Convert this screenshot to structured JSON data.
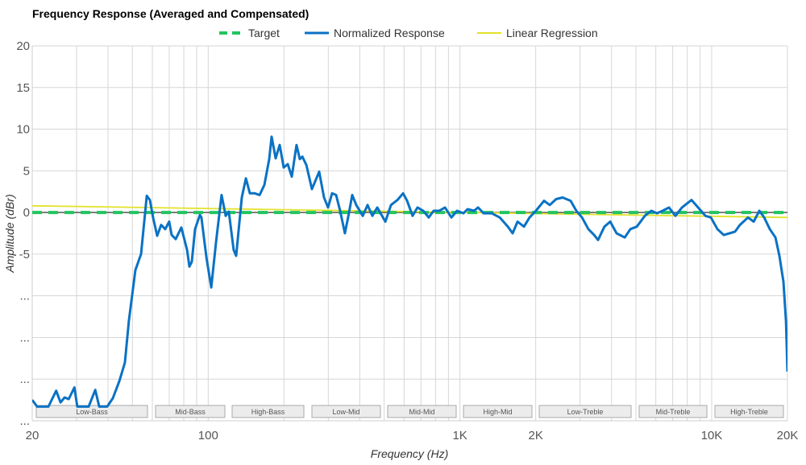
{
  "chart_data": {
    "type": "line",
    "title": "Frequency Response (Averaged and Compensated)",
    "xlabel": "Frequency (Hz)",
    "ylabel": "Amplitude (dBr)",
    "x_scale": "log",
    "xlim": [
      20,
      20000
    ],
    "ylim": [
      -25,
      20
    ],
    "grid": true,
    "legend_position": "top",
    "x_tick_labels": [
      {
        "value": 20,
        "label": "20"
      },
      {
        "value": 100,
        "label": "100"
      },
      {
        "value": 1000,
        "label": "1K"
      },
      {
        "value": 2000,
        "label": "2K"
      },
      {
        "value": 10000,
        "label": "10K"
      },
      {
        "value": 20000,
        "label": "20K"
      }
    ],
    "y_tick_labels": [
      {
        "value": 20,
        "label": "20"
      },
      {
        "value": 15,
        "label": "15"
      },
      {
        "value": 10,
        "label": "10"
      },
      {
        "value": 5,
        "label": "5"
      },
      {
        "value": 0,
        "label": "0"
      },
      {
        "value": -5,
        "label": "-5"
      },
      {
        "value": -10,
        "label": "..."
      },
      {
        "value": -15,
        "label": "..."
      },
      {
        "value": -20,
        "label": "..."
      },
      {
        "value": -25,
        "label": "..."
      }
    ],
    "bands": [
      "Low-Bass",
      "Mid-Bass",
      "High-Bass",
      "Low-Mid",
      "Mid-Mid",
      "High-Mid",
      "Low-Treble",
      "Mid-Treble",
      "High-Treble"
    ],
    "series": [
      {
        "name": "Target",
        "color": "#22c55e",
        "style": "dashed",
        "points": [
          [
            20,
            0
          ],
          [
            20000,
            0
          ]
        ]
      },
      {
        "name": "Normalized Response",
        "color": "#0a72c4",
        "style": "solid",
        "points": [
          [
            20,
            -22.5
          ],
          [
            20.9,
            -23.3
          ],
          [
            23.2,
            -23.3
          ],
          [
            24.9,
            -21.4
          ],
          [
            25.9,
            -22.8
          ],
          [
            26.9,
            -22.2
          ],
          [
            27.9,
            -22.4
          ],
          [
            29.4,
            -21.0
          ],
          [
            30.2,
            -23.3
          ],
          [
            33.5,
            -23.3
          ],
          [
            35.6,
            -21.3
          ],
          [
            36.9,
            -23.3
          ],
          [
            39.7,
            -23.3
          ],
          [
            41.8,
            -22.3
          ],
          [
            44.4,
            -20.2
          ],
          [
            46.7,
            -18.0
          ],
          [
            48.4,
            -13.0
          ],
          [
            51.4,
            -6.9
          ],
          [
            54.1,
            -5.0
          ],
          [
            57,
            2.0
          ],
          [
            58.7,
            1.5
          ],
          [
            60.4,
            -0.6
          ],
          [
            62.7,
            -2.8
          ],
          [
            65,
            -1.5
          ],
          [
            67.5,
            -2.0
          ],
          [
            70,
            -1.1
          ],
          [
            71.6,
            -2.7
          ],
          [
            74.3,
            -3.2
          ],
          [
            78.2,
            -1.8
          ],
          [
            82.4,
            -4.5
          ],
          [
            84.2,
            -6.5
          ],
          [
            86.1,
            -5.9
          ],
          [
            88.7,
            -2.0
          ],
          [
            92.7,
            -0.3
          ],
          [
            94,
            -0.6
          ],
          [
            98.4,
            -5.4
          ],
          [
            102.8,
            -9.0
          ],
          [
            107.5,
            -3.5
          ],
          [
            113,
            2.1
          ],
          [
            117.3,
            -0.4
          ],
          [
            120.8,
            0.1
          ],
          [
            126.2,
            -4.5
          ],
          [
            129.1,
            -5.2
          ],
          [
            136,
            1.8
          ],
          [
            141.2,
            4.1
          ],
          [
            146.4,
            2.3
          ],
          [
            153.1,
            2.3
          ],
          [
            160,
            2.1
          ],
          [
            167.2,
            3.3
          ],
          [
            174.7,
            6.4
          ],
          [
            178.6,
            9.1
          ],
          [
            185.3,
            6.5
          ],
          [
            192.3,
            8.1
          ],
          [
            199.5,
            5.4
          ],
          [
            207,
            5.8
          ],
          [
            214.8,
            4.3
          ],
          [
            224.4,
            8.1
          ],
          [
            231.2,
            6.4
          ],
          [
            236.6,
            6.7
          ],
          [
            245.5,
            5.7
          ],
          [
            258.2,
            2.8
          ],
          [
            276,
            4.9
          ],
          [
            288.5,
            1.8
          ],
          [
            299.3,
            0.6
          ],
          [
            310.5,
            2.3
          ],
          [
            322.2,
            2.1
          ],
          [
            334.2,
            0.2
          ],
          [
            349.2,
            -2.5
          ],
          [
            362.3,
            -0.1
          ],
          [
            373.3,
            2.1
          ],
          [
            387.3,
            0.9
          ],
          [
            411.2,
            -0.4
          ],
          [
            429.6,
            0.9
          ],
          [
            449,
            -0.4
          ],
          [
            469.6,
            0.6
          ],
          [
            505.5,
            -1.1
          ],
          [
            532.3,
            0.9
          ],
          [
            564.6,
            1.5
          ],
          [
            594.4,
            2.3
          ],
          [
            616.7,
            1.4
          ],
          [
            648.6,
            -0.4
          ],
          [
            678.5,
            0.6
          ],
          [
            714.6,
            0.2
          ],
          [
            751.7,
            -0.6
          ],
          [
            786.2,
            0.2
          ],
          [
            828,
            0.2
          ],
          [
            872.2,
            0.6
          ],
          [
            925,
            -0.6
          ],
          [
            974,
            0.2
          ],
          [
            1033,
            -0.1
          ],
          [
            1072,
            0.4
          ],
          [
            1138,
            0.2
          ],
          [
            1180,
            0.6
          ],
          [
            1242,
            -0.1
          ],
          [
            1337,
            -0.1
          ],
          [
            1439,
            -0.6
          ],
          [
            1550,
            -1.7
          ],
          [
            1619,
            -2.5
          ],
          [
            1694,
            -1.1
          ],
          [
            1797,
            -1.7
          ],
          [
            1890,
            -0.6
          ],
          [
            2003,
            0.2
          ],
          [
            2158,
            1.4
          ],
          [
            2275,
            0.9
          ],
          [
            2411,
            1.6
          ],
          [
            2557,
            1.8
          ],
          [
            2753,
            1.4
          ],
          [
            2899,
            0.2
          ],
          [
            3055,
            -0.6
          ],
          [
            3238,
            -2.0
          ],
          [
            3411,
            -2.7
          ],
          [
            3537,
            -3.3
          ],
          [
            3750,
            -1.7
          ],
          [
            3952,
            -1.1
          ],
          [
            4190,
            -2.5
          ],
          [
            4514,
            -3.0
          ],
          [
            4754,
            -2.0
          ],
          [
            5043,
            -1.7
          ],
          [
            5429,
            -0.4
          ],
          [
            5759,
            0.2
          ],
          [
            6065,
            -0.1
          ],
          [
            6383,
            0.2
          ],
          [
            6768,
            0.6
          ],
          [
            7178,
            -0.4
          ],
          [
            7617,
            0.6
          ],
          [
            8318,
            1.5
          ],
          [
            8830,
            0.6
          ],
          [
            9441,
            -0.4
          ],
          [
            9931,
            -0.6
          ],
          [
            10540,
            -2.0
          ],
          [
            11170,
            -2.7
          ],
          [
            11770,
            -2.5
          ],
          [
            12390,
            -2.3
          ],
          [
            12950,
            -1.5
          ],
          [
            13940,
            -0.6
          ],
          [
            14690,
            -1.1
          ],
          [
            15460,
            0.2
          ],
          [
            16160,
            -0.6
          ],
          [
            17020,
            -2.0
          ],
          [
            17920,
            -3.0
          ],
          [
            18580,
            -5.2
          ],
          [
            19280,
            -8.3
          ],
          [
            19730,
            -13.1
          ],
          [
            20000,
            -19.1
          ]
        ]
      },
      {
        "name": "Linear Regression",
        "color": "#e2e22a",
        "style": "solid",
        "points": [
          [
            20,
            0.8
          ],
          [
            20000,
            -0.6
          ]
        ]
      }
    ]
  }
}
